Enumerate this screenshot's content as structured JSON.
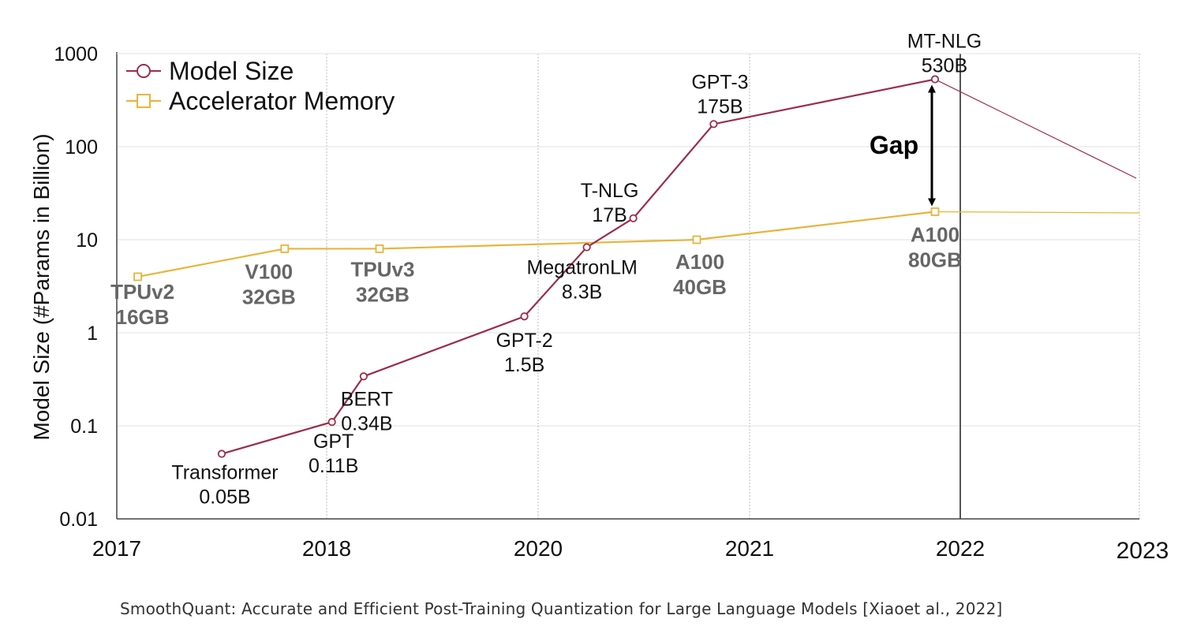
{
  "chart_data": {
    "type": "line",
    "title": "",
    "ylabel": "Model Size (#Params in Billion)",
    "xlabel": "",
    "yscale": "log",
    "ylim": [
      0.01,
      1000
    ],
    "y_ticks": [
      {
        "value": 1000,
        "label": "1000"
      },
      {
        "value": 100,
        "label": "100"
      },
      {
        "value": 10,
        "label": "10"
      },
      {
        "value": 1,
        "label": "1"
      },
      {
        "value": 0.1,
        "label": "0.1"
      },
      {
        "value": 0.01,
        "label": "0.01"
      }
    ],
    "x_ticks": [
      {
        "key": "2017",
        "label": "2017"
      },
      {
        "key": "2018",
        "label": "2018"
      },
      {
        "key": "2020",
        "label": "2020"
      },
      {
        "key": "2021",
        "label": "2021"
      },
      {
        "key": "2022",
        "label": "2022"
      },
      {
        "key": "2023",
        "label": "2023"
      }
    ],
    "grid": true,
    "legend_position": "top-left",
    "series": [
      {
        "name": "Model Size",
        "color": "#9b2d4a",
        "marker": "circle",
        "points": [
          {
            "x": "2017.5",
            "y": 0.05,
            "label": [
              "Transformer",
              "0.05B"
            ]
          },
          {
            "x": "2018.05",
            "y": 0.11,
            "label": [
              "GPT",
              "0.11B"
            ]
          },
          {
            "x": "2018.35",
            "y": 0.34,
            "label": [
              "BERT",
              "0.34B"
            ]
          },
          {
            "x": "2019.87",
            "y": 1.5,
            "label": [
              "GPT-2",
              "1.5B"
            ]
          },
          {
            "x": "2020.23",
            "y": 8.3,
            "label": [
              "MegatronLM",
              "8.3B"
            ]
          },
          {
            "x": "2020.45",
            "y": 17,
            "label": [
              "T-NLG",
              "17B"
            ]
          },
          {
            "x": "2020.83",
            "y": 175,
            "label": [
              "GPT-3",
              "175B"
            ]
          },
          {
            "x": "2021.88",
            "y": 530,
            "label": [
              "MT-NLG",
              "530B"
            ]
          }
        ]
      },
      {
        "name": "Accelerator Memory",
        "color": "#e8b43a",
        "marker": "square",
        "points": [
          {
            "x": "2017.1",
            "y": 4,
            "label": [
              "TPUv2",
              "16GB"
            ]
          },
          {
            "x": "2017.8",
            "y": 8,
            "label": [
              "V100",
              "32GB"
            ]
          },
          {
            "x": "2018.5",
            "y": 8,
            "label": [
              "TPUv3",
              "32GB"
            ]
          },
          {
            "x": "2020.75",
            "y": 10,
            "label": [
              "A100",
              "40GB"
            ]
          },
          {
            "x": "2021.88",
            "y": 20,
            "label": [
              "A100",
              "80GB"
            ]
          }
        ]
      }
    ],
    "annotation": {
      "text": "Gap",
      "from": 20,
      "to": 530
    }
  },
  "caption": "SmoothQuant: Accurate and Efficient Post-Training Quantization for Large Language Models [Xiaoet al., 2022]"
}
